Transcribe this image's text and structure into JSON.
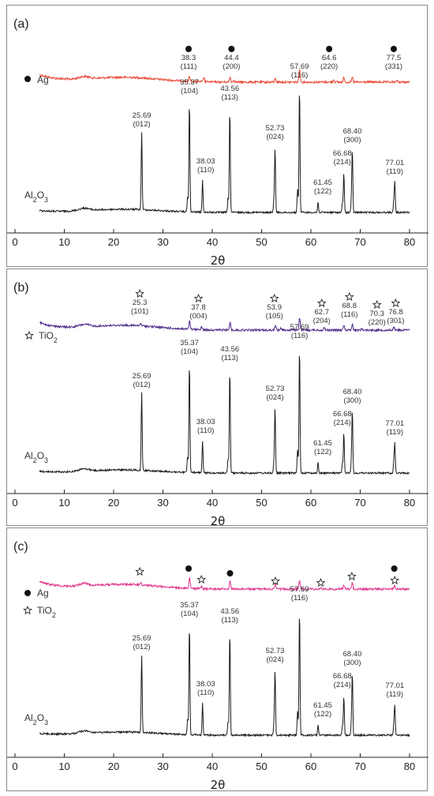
{
  "chart_data": [
    {
      "type": "line",
      "panel_label": "(a)",
      "xlabel": "2θ",
      "xlim": [
        0,
        80
      ],
      "xticks": [
        0,
        10,
        20,
        30,
        40,
        50,
        60,
        70,
        80
      ],
      "series": [
        {
          "name": "Ag",
          "color": "#e8432f",
          "marker": "dot",
          "peaks": [
            {
              "x": 38.3,
              "label": "38.3",
              "hkl": "(111)"
            },
            {
              "x": 44.4,
              "label": "44.4",
              "hkl": "(200)"
            },
            {
              "x": 64.6,
              "label": "64.6",
              "hkl": "(220)"
            },
            {
              "x": 77.5,
              "label": "77.5",
              "hkl": "(331)"
            }
          ]
        },
        {
          "name": "Al2O3",
          "color": "#1a1a1a",
          "peaks": [
            {
              "x": 25.69,
              "label": "25.69",
              "hkl": "(012)"
            },
            {
              "x": 35.37,
              "label": "35.37",
              "hkl": "(104)"
            },
            {
              "x": 38.03,
              "label": "38.03",
              "hkl": "(110)"
            },
            {
              "x": 43.56,
              "label": "43.56",
              "hkl": "(113)"
            },
            {
              "x": 52.73,
              "label": "52.73",
              "hkl": "(024)"
            },
            {
              "x": 57.69,
              "label": "57.69",
              "hkl": "(116)"
            },
            {
              "x": 61.45,
              "label": "61.45",
              "hkl": "(122)"
            },
            {
              "x": 66.68,
              "label": "66.68",
              "hkl": "(214)"
            },
            {
              "x": 68.4,
              "label": "68.40",
              "hkl": "(300)"
            },
            {
              "x": 77.01,
              "label": "77.01",
              "hkl": "(119)"
            }
          ]
        }
      ]
    },
    {
      "type": "line",
      "panel_label": "(b)",
      "xlabel": "2θ",
      "xlim": [
        0,
        80
      ],
      "xticks": [
        0,
        10,
        20,
        30,
        40,
        50,
        60,
        70,
        80
      ],
      "series": [
        {
          "name": "TiO2",
          "color": "#4b2a8a",
          "marker": "star",
          "peaks": [
            {
              "x": 25.3,
              "label": "25.3",
              "hkl": "(101)"
            },
            {
              "x": 37.8,
              "label": "37.8",
              "hkl": "(004)"
            },
            {
              "x": 53.9,
              "label": "53.9",
              "hkl": "(105)"
            },
            {
              "x": 62.7,
              "label": "62.7",
              "hkl": "(204)"
            },
            {
              "x": 68.8,
              "label": "68.8",
              "hkl": "(116)"
            },
            {
              "x": 70.3,
              "label": "70.3",
              "hkl": "(220)"
            },
            {
              "x": 76.8,
              "label": "76.8",
              "hkl": "(301)"
            }
          ]
        },
        {
          "name": "Al2O3",
          "color": "#1a1a1a",
          "peaks": [
            {
              "x": 25.69,
              "label": "25.69",
              "hkl": "(012)"
            },
            {
              "x": 35.37,
              "label": "35.37",
              "hkl": "(104)"
            },
            {
              "x": 38.03,
              "label": "38.03",
              "hkl": "(110)"
            },
            {
              "x": 43.56,
              "label": "43.56",
              "hkl": "(113)"
            },
            {
              "x": 52.73,
              "label": "52.73",
              "hkl": "(024)"
            },
            {
              "x": 57.69,
              "label": "57.69",
              "hkl": "(116)"
            },
            {
              "x": 61.45,
              "label": "61.45",
              "hkl": "(122)"
            },
            {
              "x": 66.68,
              "label": "66.68",
              "hkl": "(214)"
            },
            {
              "x": 68.4,
              "label": "68.40",
              "hkl": "(300)"
            },
            {
              "x": 77.01,
              "label": "77.01",
              "hkl": "(119)"
            }
          ]
        }
      ]
    },
    {
      "type": "line",
      "panel_label": "(c)",
      "xlabel": "2θ",
      "xlim": [
        0,
        80
      ],
      "xticks": [
        0,
        10,
        20,
        30,
        40,
        50,
        60,
        70,
        80
      ],
      "series": [
        {
          "name": "Ag/TiO2",
          "color": "#e0338c",
          "markers": [
            {
              "x": 25.3,
              "marker": "star"
            },
            {
              "x": 35.2,
              "marker": "dot"
            },
            {
              "x": 37.8,
              "marker": "star"
            },
            {
              "x": 43.6,
              "marker": "dot"
            },
            {
              "x": 52.8,
              "marker": "star"
            },
            {
              "x": 62.0,
              "marker": "star"
            },
            {
              "x": 68.3,
              "marker": "star"
            },
            {
              "x": 76.9,
              "marker": "dot"
            },
            {
              "x": 77.0,
              "marker": "star"
            }
          ]
        },
        {
          "name": "Al2O3",
          "color": "#1a1a1a",
          "peaks": [
            {
              "x": 25.69,
              "label": "25.69",
              "hkl": "(012)"
            },
            {
              "x": 35.37,
              "label": "35.37",
              "hkl": "(104)"
            },
            {
              "x": 38.03,
              "label": "38.03",
              "hkl": "(110)"
            },
            {
              "x": 43.56,
              "label": "43.56",
              "hkl": "(113)"
            },
            {
              "x": 52.73,
              "label": "52.73",
              "hkl": "(024)"
            },
            {
              "x": 57.69,
              "label": "57.69",
              "hkl": "(116)"
            },
            {
              "x": 61.45,
              "label": "61.45",
              "hkl": "(122)"
            },
            {
              "x": 66.68,
              "label": "66.68",
              "hkl": "(214)"
            },
            {
              "x": 68.4,
              "label": "68.40",
              "hkl": "(300)"
            },
            {
              "x": 77.01,
              "label": "77.01",
              "hkl": "(119)"
            }
          ]
        }
      ],
      "legend": [
        {
          "marker": "dot",
          "label": "Ag"
        },
        {
          "marker": "star",
          "label": "TiO2"
        }
      ]
    }
  ]
}
